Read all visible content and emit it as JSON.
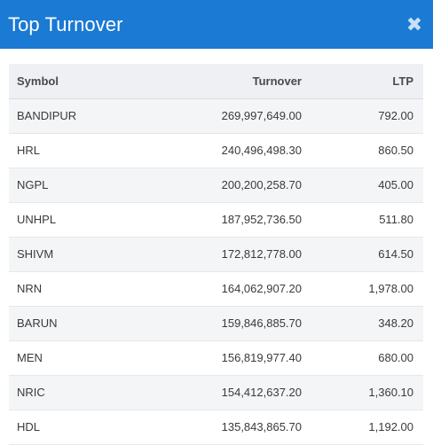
{
  "header": {
    "title": "Top Turnover",
    "close_icon": "close-icon",
    "close_glyph": "✖",
    "background": "#1a7ad4"
  },
  "table": {
    "columns": [
      "Symbol",
      "Turnover",
      "LTP"
    ],
    "rows": [
      {
        "symbol": "BANDIPUR",
        "turnover": "269,997,649.00",
        "ltp": "792.00"
      },
      {
        "symbol": "HRL",
        "turnover": "240,496,498.30",
        "ltp": "860.50"
      },
      {
        "symbol": "NGPL",
        "turnover": "200,200,258.70",
        "ltp": "405.00"
      },
      {
        "symbol": "UNHPL",
        "turnover": "187,952,736.50",
        "ltp": "511.80"
      },
      {
        "symbol": "SHIVM",
        "turnover": "172,812,778.00",
        "ltp": "614.50"
      },
      {
        "symbol": "NRN",
        "turnover": "164,062,907.20",
        "ltp": "1,978.00"
      },
      {
        "symbol": "BARUN",
        "turnover": "159,846,885.70",
        "ltp": "348.20"
      },
      {
        "symbol": "MEN",
        "turnover": "156,819,977.40",
        "ltp": "680.00"
      },
      {
        "symbol": "NRIC",
        "turnover": "154,412,637.20",
        "ltp": "1,360.10"
      },
      {
        "symbol": "HDL",
        "turnover": "135,843,865.70",
        "ltp": "1,192.00"
      }
    ]
  }
}
